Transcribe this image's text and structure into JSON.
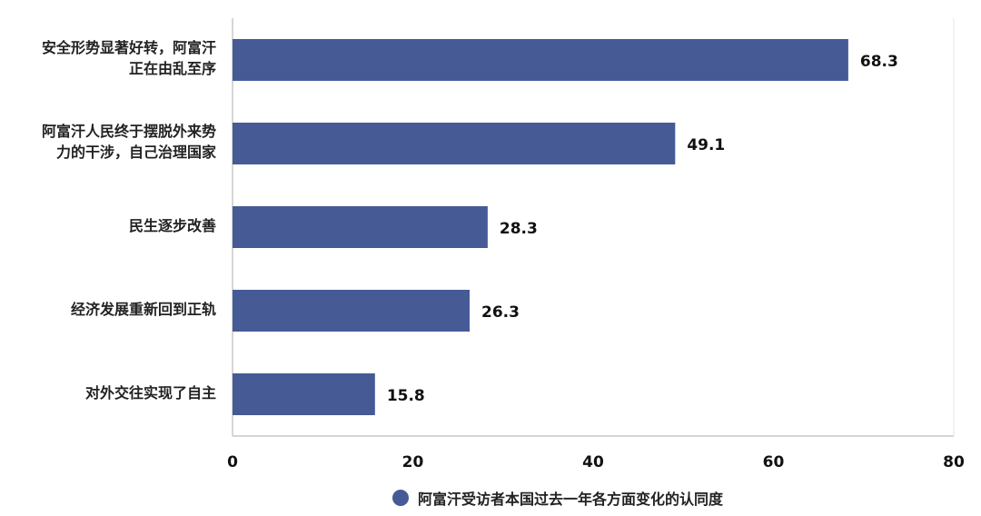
{
  "chart_data": {
    "type": "bar",
    "orientation": "horizontal",
    "categories": [
      "安全形势显著好转，阿富汗正在由乱至序",
      "阿富汗人民终于摆脱外来势力的干涉，自己治理国家",
      "民生逐步改善",
      "经济发展重新回到正轨",
      "对外交往实现了自主"
    ],
    "category_lines": [
      [
        "安全形势显著好转，阿富汗",
        "正在由乱至序"
      ],
      [
        "阿富汗人民终于摆脱外来势",
        "力的干涉，自己治理国家"
      ],
      [
        "民生逐步改善"
      ],
      [
        "经济发展重新回到正轨"
      ],
      [
        "对外交往实现了自主"
      ]
    ],
    "series": [
      {
        "name": "阿富汗受访者本国过去一年各方面变化的认同度",
        "values": [
          68.3,
          49.1,
          28.3,
          26.3,
          15.8
        ]
      }
    ],
    "data_labels": [
      "68.3",
      "49.1",
      "28.3",
      "26.3",
      "15.8"
    ],
    "xlim": [
      0,
      80
    ],
    "xticks": [
      "0",
      "20",
      "40",
      "60",
      "80"
    ],
    "grid": false,
    "legend_position": "bottom",
    "bar_color": "#465a96"
  }
}
